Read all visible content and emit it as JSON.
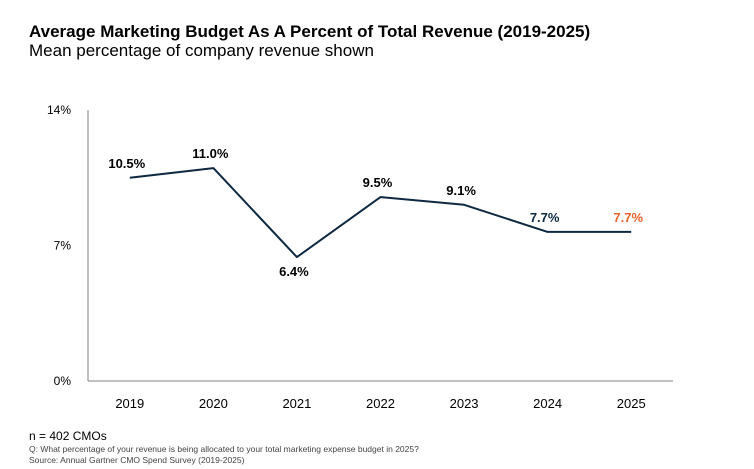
{
  "header": {
    "title": "Average Marketing Budget As A Percent of Total Revenue (2019-2025)",
    "subtitle": "Mean percentage of company revenue shown"
  },
  "chart_data": {
    "type": "line",
    "categories": [
      "2019",
      "2020",
      "2021",
      "2022",
      "2023",
      "2024",
      "2025"
    ],
    "series": [
      {
        "values": [
          10.5,
          11.0,
          6.4,
          9.5,
          9.1,
          7.7,
          7.7
        ],
        "labels": [
          "10.5%",
          "11.0%",
          "6.4%",
          "9.5%",
          "9.1%",
          "7.7%",
          "7.7%"
        ]
      }
    ],
    "ylim": [
      0,
      14
    ],
    "y_ticks": [
      {
        "value": 0,
        "label": "0%"
      },
      {
        "value": 7,
        "label": "7%"
      },
      {
        "value": 14,
        "label": "14%"
      }
    ],
    "grid": false,
    "colors": {
      "line": "#0e2841",
      "label_dark": "#000000",
      "label_navy": "#0e2841",
      "highlight": "#e8632b",
      "axis": "#808080"
    }
  },
  "footer": {
    "n_note": "n = 402 CMOs",
    "question": "Q: What percentage of your revenue is being allocated to your total marketing expense budget in 2025?",
    "source": "Source: Annual Gartner CMO Spend Survey (2019-2025)"
  }
}
